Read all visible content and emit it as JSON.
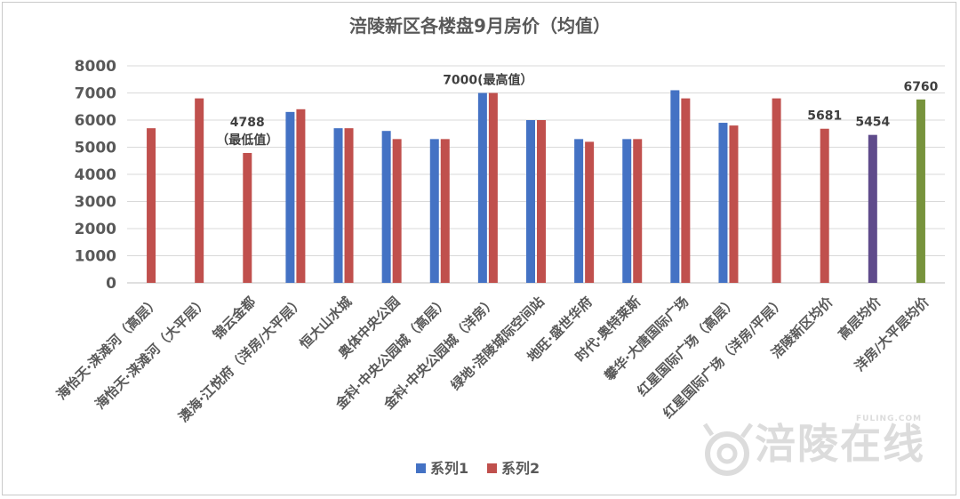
{
  "watermark": {
    "logo": "涪陵在线",
    "domain": "FULING.COM"
  },
  "chart_data": {
    "type": "bar",
    "title": "涪陵新区各楼盘9月房价（均值）",
    "ylim": [
      0,
      8000
    ],
    "yticks": [
      0,
      1000,
      2000,
      3000,
      4000,
      5000,
      6000,
      7000,
      8000
    ],
    "grid": true,
    "legend_position": "bottom",
    "categories": [
      "海怡天·涞滩河（高层）",
      "海怡天·涞滩河（大平层）",
      "锦云金都",
      "澳海·江悦府（洋房/大平层）",
      "恒大山水城",
      "奥体中央公园",
      "金科·中央公园城（高层）",
      "金科·中央公园城（洋房）",
      "绿地·涪陵城际空间站",
      "地旺·盛世华府",
      "时代·奥特莱斯",
      "攀华·大唐国际广场",
      "红星国际广场（高层）",
      "红星国际广场（洋房/平层）",
      "涪陵新区均价",
      "高层均价",
      "洋房/大平层均价"
    ],
    "series": [
      {
        "name": "系列1",
        "color": "#4472c4",
        "values": [
          null,
          null,
          null,
          6300,
          5700,
          5600,
          5300,
          7000,
          6000,
          5300,
          5300,
          7100,
          5900,
          null,
          null,
          null,
          null
        ]
      },
      {
        "name": "系列2",
        "color": "#c0504d",
        "values": [
          5700,
          6800,
          4788,
          6400,
          5700,
          5300,
          5300,
          7000,
          6000,
          5200,
          5300,
          6800,
          5800,
          6800,
          5681,
          null,
          null
        ]
      },
      {
        "values": [
          null,
          null,
          null,
          null,
          null,
          null,
          null,
          null,
          null,
          null,
          null,
          null,
          null,
          null,
          null,
          5454,
          null
        ],
        "color": "#5f4b8b"
      },
      {
        "values": [
          null,
          null,
          null,
          null,
          null,
          null,
          null,
          null,
          null,
          null,
          null,
          null,
          null,
          null,
          null,
          null,
          6760
        ],
        "color": "#77933c"
      }
    ],
    "annotations": [
      {
        "category_index": 2,
        "lines": [
          "4788",
          "（最低值）"
        ]
      },
      {
        "category_index": 7,
        "lines": [
          "7000(最高值）"
        ]
      },
      {
        "category_index": 14,
        "lines": [
          "5681"
        ]
      },
      {
        "category_index": 15,
        "lines": [
          "5454"
        ]
      },
      {
        "category_index": 16,
        "lines": [
          "6760"
        ]
      }
    ]
  }
}
